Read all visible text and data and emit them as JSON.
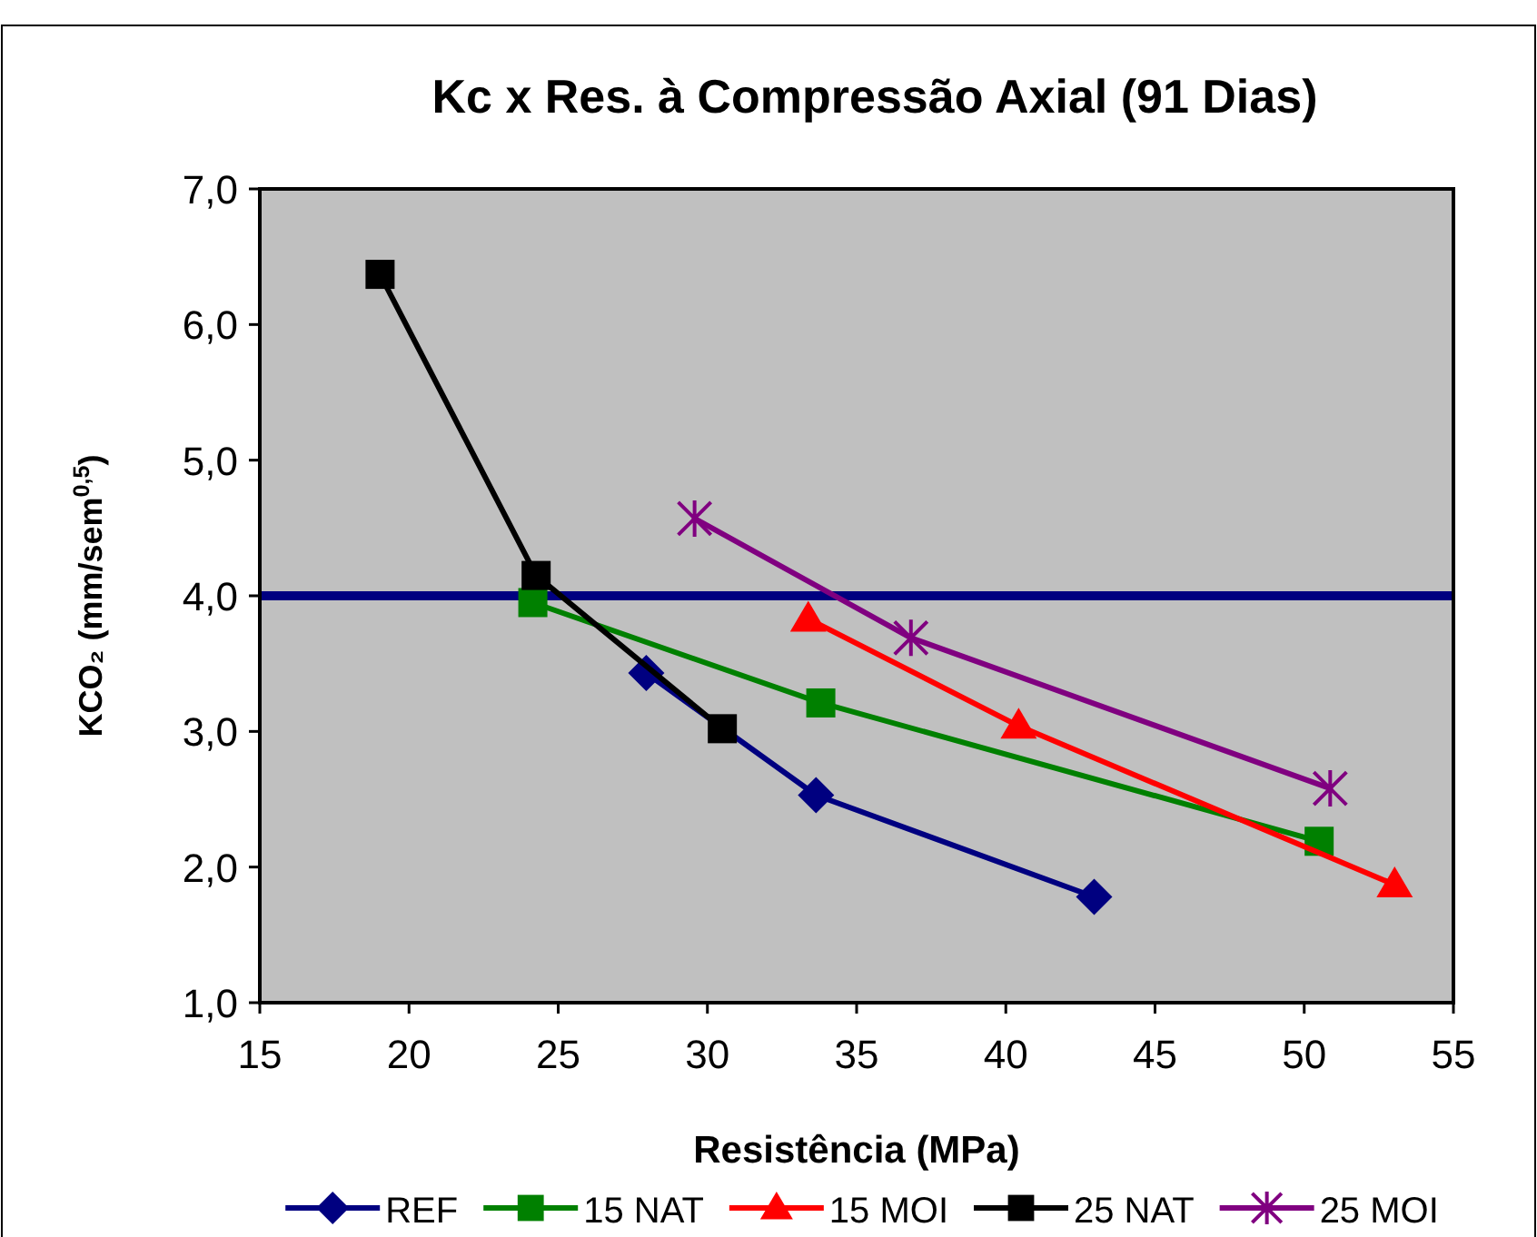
{
  "chart_data": {
    "type": "line",
    "title": "Kc x Res. à Compressão Axial (91 Dias)",
    "xlabel": "Resistência (MPa)",
    "ylabel": "KCO₂ (mm/sem$^{0,5}$)",
    "xlim": [
      15,
      55
    ],
    "xticks": [
      15,
      20,
      25,
      30,
      35,
      40,
      45,
      50,
      55
    ],
    "ylim": [
      1,
      7
    ],
    "yticks": [
      {
        "value": 1,
        "label": "1,0"
      },
      {
        "value": 2,
        "label": "2,0"
      },
      {
        "value": 3,
        "label": "3,0"
      },
      {
        "value": 4,
        "label": "4,0"
      },
      {
        "value": 5,
        "label": "5,0"
      },
      {
        "value": 6,
        "label": "6,0"
      },
      {
        "value": 7,
        "label": "7,0"
      }
    ],
    "grid": false,
    "legend": "bottom",
    "series": [
      {
        "name": "REF",
        "color": "#000080",
        "marker": "diamond",
        "x": [
          27.95,
          33.64,
          42.96
        ],
        "values": [
          3.43,
          2.53,
          1.78
        ]
      },
      {
        "name": "15 NAT",
        "color": "#008000",
        "marker": "square",
        "x": [
          24.15,
          33.8,
          50.5
        ],
        "values": [
          3.95,
          3.21,
          2.19
        ]
      },
      {
        "name": "15 MOI",
        "color": "#ff0000",
        "marker": "triangle",
        "x": [
          33.38,
          40.43,
          53.03
        ],
        "values": [
          3.83,
          3.04,
          1.87
        ]
      },
      {
        "name": "25 NAT",
        "color": "#000000",
        "marker": "square",
        "x": [
          19.03,
          24.26,
          30.5
        ],
        "values": [
          6.37,
          4.15,
          3.02
        ]
      },
      {
        "name": "25 MOI",
        "color": "#800080",
        "marker": "cross",
        "x": [
          29.57,
          36.82,
          50.87
        ],
        "values": [
          4.57,
          3.69,
          2.58
        ]
      }
    ],
    "ref_lines": [
      {
        "axis": "y",
        "value": 4.0,
        "color": "#000080",
        "line_style": "solid"
      }
    ]
  }
}
